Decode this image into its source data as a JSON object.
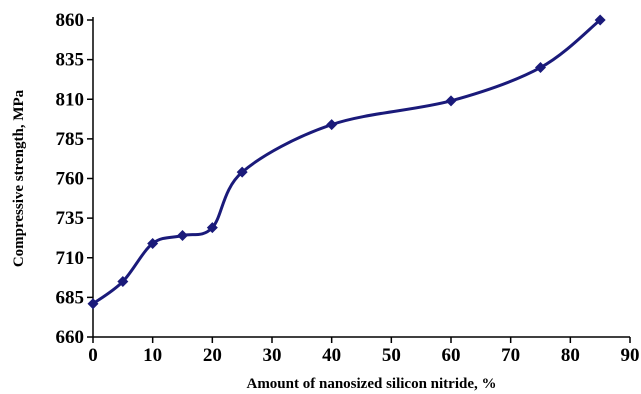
{
  "chart_data": {
    "type": "line",
    "title": "",
    "xlabel": "Amount of nanosized silicon nitride, %",
    "ylabel": "Compressive strength, MPa",
    "xlim": [
      0,
      90
    ],
    "ylim": [
      660,
      860
    ],
    "xticks": [
      0,
      10,
      20,
      30,
      40,
      50,
      60,
      70,
      80,
      90
    ],
    "yticks": [
      660,
      685,
      710,
      735,
      760,
      785,
      810,
      835,
      860
    ],
    "grid": false,
    "legend": "none",
    "series": [
      {
        "color": "#1a1a7a",
        "marker": "diamond",
        "x": [
          0,
          5,
          10,
          15,
          20,
          25,
          40,
          60,
          75,
          85
        ],
        "y": [
          681,
          695,
          719,
          724,
          729,
          764,
          794,
          809,
          830,
          860
        ]
      }
    ]
  }
}
